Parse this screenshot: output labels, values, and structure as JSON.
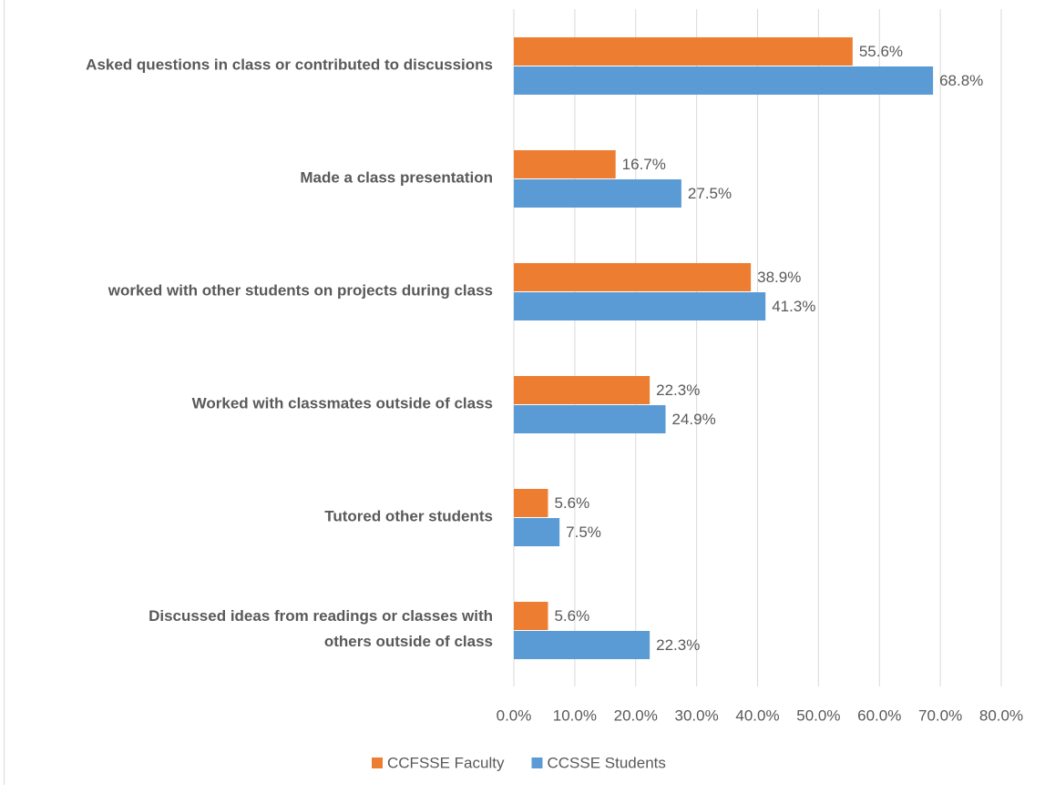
{
  "chart_data": {
    "type": "bar",
    "orientation": "horizontal",
    "categories": [
      "Asked questions in class or contributed to discussions",
      "Made a class presentation",
      "worked with other students on projects during class",
      "Worked with classmates outside of class",
      "Tutored other students",
      "Discussed ideas from readings or classes with others outside of class"
    ],
    "series": [
      {
        "name": "CCFSSE Faculty",
        "color": "#ed7d31",
        "values": [
          55.6,
          16.7,
          38.9,
          22.3,
          5.6,
          5.6
        ],
        "value_labels": [
          "55.6%",
          "16.7%",
          "38.9%",
          "22.3%",
          "5.6%",
          "5.6%"
        ]
      },
      {
        "name": "CCSSE Students",
        "color": "#5b9bd5",
        "values": [
          68.8,
          27.5,
          41.3,
          24.9,
          7.5,
          22.3
        ],
        "value_labels": [
          "68.8%",
          "27.5%",
          "41.3%",
          "24.9%",
          "7.5%",
          "22.3%"
        ]
      }
    ],
    "xlim": [
      0,
      80
    ],
    "xticks": [
      {
        "value": 0,
        "label": "0.0%"
      },
      {
        "value": 10,
        "label": "10.0%"
      },
      {
        "value": 20,
        "label": "20.0%"
      },
      {
        "value": 30,
        "label": "30.0%"
      },
      {
        "value": 40,
        "label": "40.0%"
      },
      {
        "value": 50,
        "label": "50.0%"
      },
      {
        "value": 60,
        "label": "60.0%"
      },
      {
        "value": 70,
        "label": "70.0%"
      },
      {
        "value": 80,
        "label": "80.0%"
      }
    ],
    "grid": true,
    "legend": "bottom"
  }
}
